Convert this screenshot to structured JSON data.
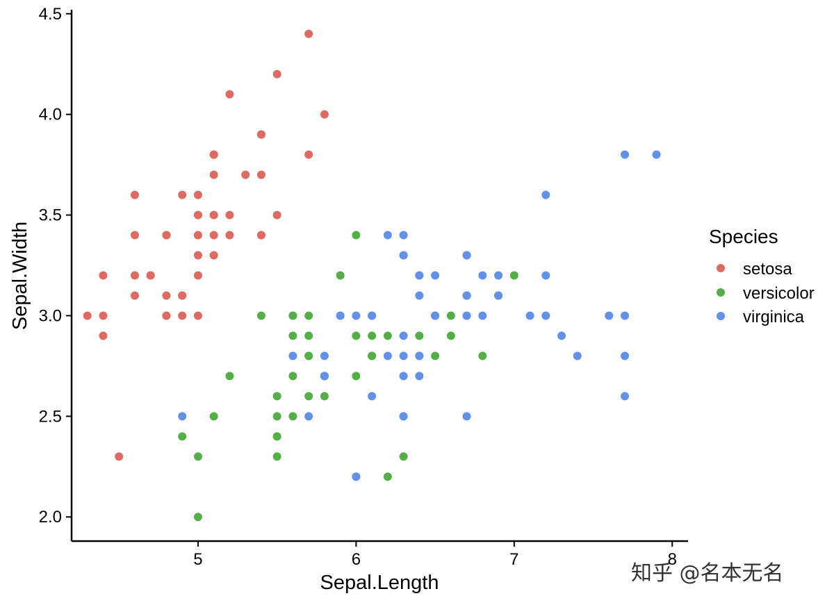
{
  "chart_data": {
    "type": "scatter",
    "xlabel": "Sepal.Length",
    "ylabel": "Sepal.Width",
    "xlim": [
      4.2,
      8.1
    ],
    "ylim": [
      1.88,
      4.52
    ],
    "xticks": [
      5,
      6,
      7,
      8
    ],
    "yticks": [
      2.0,
      2.5,
      3.0,
      3.5,
      4.0,
      4.5
    ],
    "xtick_labels": [
      "5",
      "6",
      "7",
      "8"
    ],
    "ytick_labels": [
      "2.0",
      "2.5",
      "3.0",
      "3.5",
      "4.0",
      "4.5"
    ],
    "grid": false,
    "legend": {
      "title": "Species",
      "placement": "right",
      "entries": [
        "setosa",
        "versicolor",
        "virginica"
      ]
    },
    "series": [
      {
        "name": "setosa",
        "color": "#DE6B63",
        "points": [
          [
            5.1,
            3.5
          ],
          [
            4.9,
            3.0
          ],
          [
            4.7,
            3.2
          ],
          [
            4.6,
            3.1
          ],
          [
            5.0,
            3.6
          ],
          [
            5.4,
            3.9
          ],
          [
            4.6,
            3.4
          ],
          [
            5.0,
            3.4
          ],
          [
            4.4,
            2.9
          ],
          [
            4.9,
            3.1
          ],
          [
            5.4,
            3.7
          ],
          [
            4.8,
            3.4
          ],
          [
            4.8,
            3.0
          ],
          [
            4.3,
            3.0
          ],
          [
            5.8,
            4.0
          ],
          [
            5.7,
            4.4
          ],
          [
            5.4,
            3.9
          ],
          [
            5.1,
            3.5
          ],
          [
            5.7,
            3.8
          ],
          [
            5.1,
            3.8
          ],
          [
            5.4,
            3.4
          ],
          [
            5.1,
            3.7
          ],
          [
            4.6,
            3.6
          ],
          [
            5.1,
            3.3
          ],
          [
            4.8,
            3.4
          ],
          [
            5.0,
            3.0
          ],
          [
            5.0,
            3.4
          ],
          [
            5.2,
            3.5
          ],
          [
            5.2,
            3.4
          ],
          [
            4.7,
            3.2
          ],
          [
            4.8,
            3.1
          ],
          [
            5.4,
            3.4
          ],
          [
            5.2,
            4.1
          ],
          [
            5.5,
            4.2
          ],
          [
            4.9,
            3.1
          ],
          [
            5.0,
            3.2
          ],
          [
            5.5,
            3.5
          ],
          [
            4.9,
            3.6
          ],
          [
            4.4,
            3.0
          ],
          [
            5.1,
            3.4
          ],
          [
            5.0,
            3.5
          ],
          [
            4.5,
            2.3
          ],
          [
            4.4,
            3.2
          ],
          [
            5.0,
            3.5
          ],
          [
            5.1,
            3.8
          ],
          [
            4.8,
            3.0
          ],
          [
            5.1,
            3.8
          ],
          [
            4.6,
            3.2
          ],
          [
            5.3,
            3.7
          ],
          [
            5.0,
            3.3
          ]
        ]
      },
      {
        "name": "versicolor",
        "color": "#55AE48",
        "points": [
          [
            7.0,
            3.2
          ],
          [
            6.4,
            3.2
          ],
          [
            6.9,
            3.1
          ],
          [
            5.5,
            2.3
          ],
          [
            6.5,
            2.8
          ],
          [
            5.7,
            2.8
          ],
          [
            6.3,
            3.3
          ],
          [
            4.9,
            2.4
          ],
          [
            6.6,
            2.9
          ],
          [
            5.2,
            2.7
          ],
          [
            5.0,
            2.0
          ],
          [
            5.9,
            3.0
          ],
          [
            6.0,
            2.2
          ],
          [
            6.1,
            2.9
          ],
          [
            5.6,
            2.9
          ],
          [
            6.7,
            3.1
          ],
          [
            5.6,
            3.0
          ],
          [
            5.8,
            2.7
          ],
          [
            6.2,
            2.2
          ],
          [
            5.6,
            2.5
          ],
          [
            5.9,
            3.2
          ],
          [
            6.1,
            2.8
          ],
          [
            6.3,
            2.5
          ],
          [
            6.1,
            2.8
          ],
          [
            6.4,
            2.9
          ],
          [
            6.6,
            3.0
          ],
          [
            6.8,
            2.8
          ],
          [
            6.7,
            3.0
          ],
          [
            6.0,
            2.9
          ],
          [
            5.7,
            2.6
          ],
          [
            5.5,
            2.4
          ],
          [
            5.5,
            2.4
          ],
          [
            5.8,
            2.7
          ],
          [
            6.0,
            2.7
          ],
          [
            5.4,
            3.0
          ],
          [
            6.0,
            3.4
          ],
          [
            6.7,
            3.1
          ],
          [
            6.3,
            2.3
          ],
          [
            5.6,
            3.0
          ],
          [
            5.5,
            2.5
          ],
          [
            5.5,
            2.6
          ],
          [
            6.1,
            3.0
          ],
          [
            5.8,
            2.6
          ],
          [
            5.0,
            2.3
          ],
          [
            5.6,
            2.7
          ],
          [
            5.7,
            3.0
          ],
          [
            5.7,
            2.9
          ],
          [
            6.2,
            2.9
          ],
          [
            5.1,
            2.5
          ],
          [
            5.7,
            2.8
          ]
        ]
      },
      {
        "name": "virginica",
        "color": "#6390E8",
        "points": [
          [
            6.3,
            3.3
          ],
          [
            5.8,
            2.7
          ],
          [
            7.1,
            3.0
          ],
          [
            6.3,
            2.9
          ],
          [
            6.5,
            3.0
          ],
          [
            7.6,
            3.0
          ],
          [
            4.9,
            2.5
          ],
          [
            7.3,
            2.9
          ],
          [
            6.7,
            2.5
          ],
          [
            7.2,
            3.6
          ],
          [
            6.5,
            3.2
          ],
          [
            6.4,
            2.7
          ],
          [
            6.8,
            3.0
          ],
          [
            5.7,
            2.5
          ],
          [
            5.8,
            2.8
          ],
          [
            6.4,
            3.2
          ],
          [
            6.5,
            3.0
          ],
          [
            7.7,
            3.8
          ],
          [
            7.7,
            2.6
          ],
          [
            6.0,
            2.2
          ],
          [
            6.9,
            3.2
          ],
          [
            5.6,
            2.8
          ],
          [
            7.7,
            2.8
          ],
          [
            6.3,
            2.7
          ],
          [
            6.7,
            3.3
          ],
          [
            7.2,
            3.2
          ],
          [
            6.2,
            2.8
          ],
          [
            6.1,
            3.0
          ],
          [
            6.4,
            2.8
          ],
          [
            7.2,
            3.0
          ],
          [
            7.4,
            2.8
          ],
          [
            7.9,
            3.8
          ],
          [
            6.4,
            2.8
          ],
          [
            6.3,
            2.8
          ],
          [
            6.1,
            2.6
          ],
          [
            7.7,
            3.0
          ],
          [
            6.3,
            3.4
          ],
          [
            6.4,
            3.1
          ],
          [
            6.0,
            3.0
          ],
          [
            6.9,
            3.1
          ],
          [
            6.7,
            3.1
          ],
          [
            6.9,
            3.1
          ],
          [
            5.8,
            2.7
          ],
          [
            6.8,
            3.2
          ],
          [
            6.7,
            3.3
          ],
          [
            6.7,
            3.0
          ],
          [
            6.3,
            2.5
          ],
          [
            6.5,
            3.0
          ],
          [
            6.2,
            3.4
          ],
          [
            5.9,
            3.0
          ]
        ]
      }
    ]
  },
  "watermark": {
    "text": "知乎 @名本无名"
  }
}
